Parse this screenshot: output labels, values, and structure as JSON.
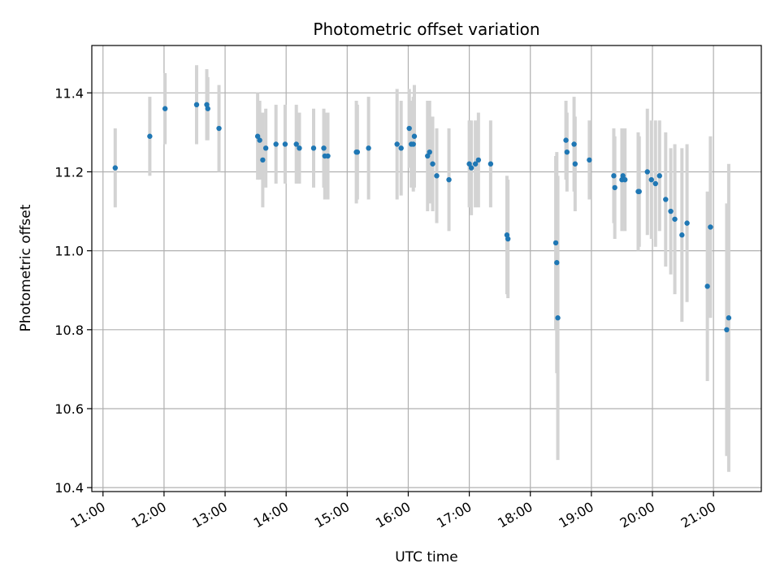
{
  "chart_data": {
    "type": "scatter",
    "title": "Photometric offset variation",
    "xlabel": "UTC time",
    "ylabel": "Photometric offset",
    "grid": true,
    "xlim": [
      "10:49",
      "21:47"
    ],
    "ylim": [
      10.39,
      11.52
    ],
    "xticks": [
      "11:00",
      "12:00",
      "13:00",
      "14:00",
      "15:00",
      "16:00",
      "17:00",
      "18:00",
      "19:00",
      "20:00",
      "21:00"
    ],
    "yticks": [
      "10.4",
      "10.6",
      "10.8",
      "11.0",
      "11.2",
      "11.4"
    ],
    "colors": {
      "point": "#1f77b4",
      "errorbar": "#d3d3d3",
      "grid": "#b0b0b0"
    },
    "series": [
      {
        "x": [
          "11:12",
          "11:46",
          "12:01",
          "12:32",
          "12:42",
          "12:43",
          "12:54",
          "13:32",
          "13:34",
          "13:37",
          "13:40",
          "13:50",
          "13:59",
          "14:10",
          "14:13",
          "14:27",
          "14:37",
          "14:38",
          "14:41",
          "15:09",
          "15:10",
          "15:21",
          "15:49",
          "15:53",
          "16:01",
          "16:03",
          "16:06",
          "16:05",
          "16:19",
          "16:21",
          "16:24",
          "16:28",
          "16:40",
          "17:00",
          "17:02",
          "17:06",
          "17:09",
          "17:21",
          "17:37",
          "17:38",
          "18:25",
          "18:26",
          "18:27",
          "18:35",
          "18:36",
          "18:43",
          "18:44",
          "18:58",
          "19:22",
          "19:23",
          "19:30",
          "19:31",
          "19:33",
          "19:46",
          "19:47",
          "19:55",
          "19:59",
          "20:03",
          "20:07",
          "20:13",
          "20:18",
          "20:22",
          "20:29",
          "20:34",
          "20:54",
          "20:57",
          "21:13",
          "21:15"
        ],
        "y": [
          11.21,
          11.29,
          11.36,
          11.37,
          11.37,
          11.36,
          11.31,
          11.29,
          11.28,
          11.23,
          11.26,
          11.27,
          11.27,
          11.27,
          11.26,
          11.26,
          11.26,
          11.24,
          11.24,
          11.25,
          11.25,
          11.26,
          11.27,
          11.26,
          11.31,
          11.27,
          11.29,
          11.27,
          11.24,
          11.25,
          11.22,
          11.19,
          11.18,
          11.22,
          11.21,
          11.22,
          11.23,
          11.22,
          11.04,
          11.03,
          11.02,
          10.97,
          10.83,
          11.28,
          11.25,
          11.27,
          11.22,
          11.23,
          11.19,
          11.16,
          11.18,
          11.19,
          11.18,
          11.15,
          11.15,
          11.2,
          11.18,
          11.17,
          11.19,
          11.13,
          11.1,
          11.08,
          11.04,
          11.07,
          10.91,
          11.06,
          10.8,
          10.83
        ],
        "yerr": [
          0.1,
          0.1,
          0.09,
          0.1,
          0.09,
          0.08,
          0.11,
          0.11,
          0.1,
          0.12,
          0.1,
          0.1,
          0.1,
          0.1,
          0.09,
          0.1,
          0.1,
          0.11,
          0.11,
          0.13,
          0.12,
          0.13,
          0.14,
          0.12,
          0.1,
          0.11,
          0.13,
          0.12,
          0.14,
          0.13,
          0.12,
          0.12,
          0.13,
          0.11,
          0.12,
          0.11,
          0.12,
          0.11,
          0.15,
          0.15,
          0.22,
          0.28,
          0.36,
          0.1,
          0.1,
          0.12,
          0.12,
          0.1,
          0.12,
          0.13,
          0.13,
          0.12,
          0.13,
          0.15,
          0.14,
          0.16,
          0.15,
          0.16,
          0.14,
          0.17,
          0.16,
          0.19,
          0.22,
          0.2,
          0.24,
          0.23,
          0.32,
          0.39
        ]
      }
    ]
  }
}
